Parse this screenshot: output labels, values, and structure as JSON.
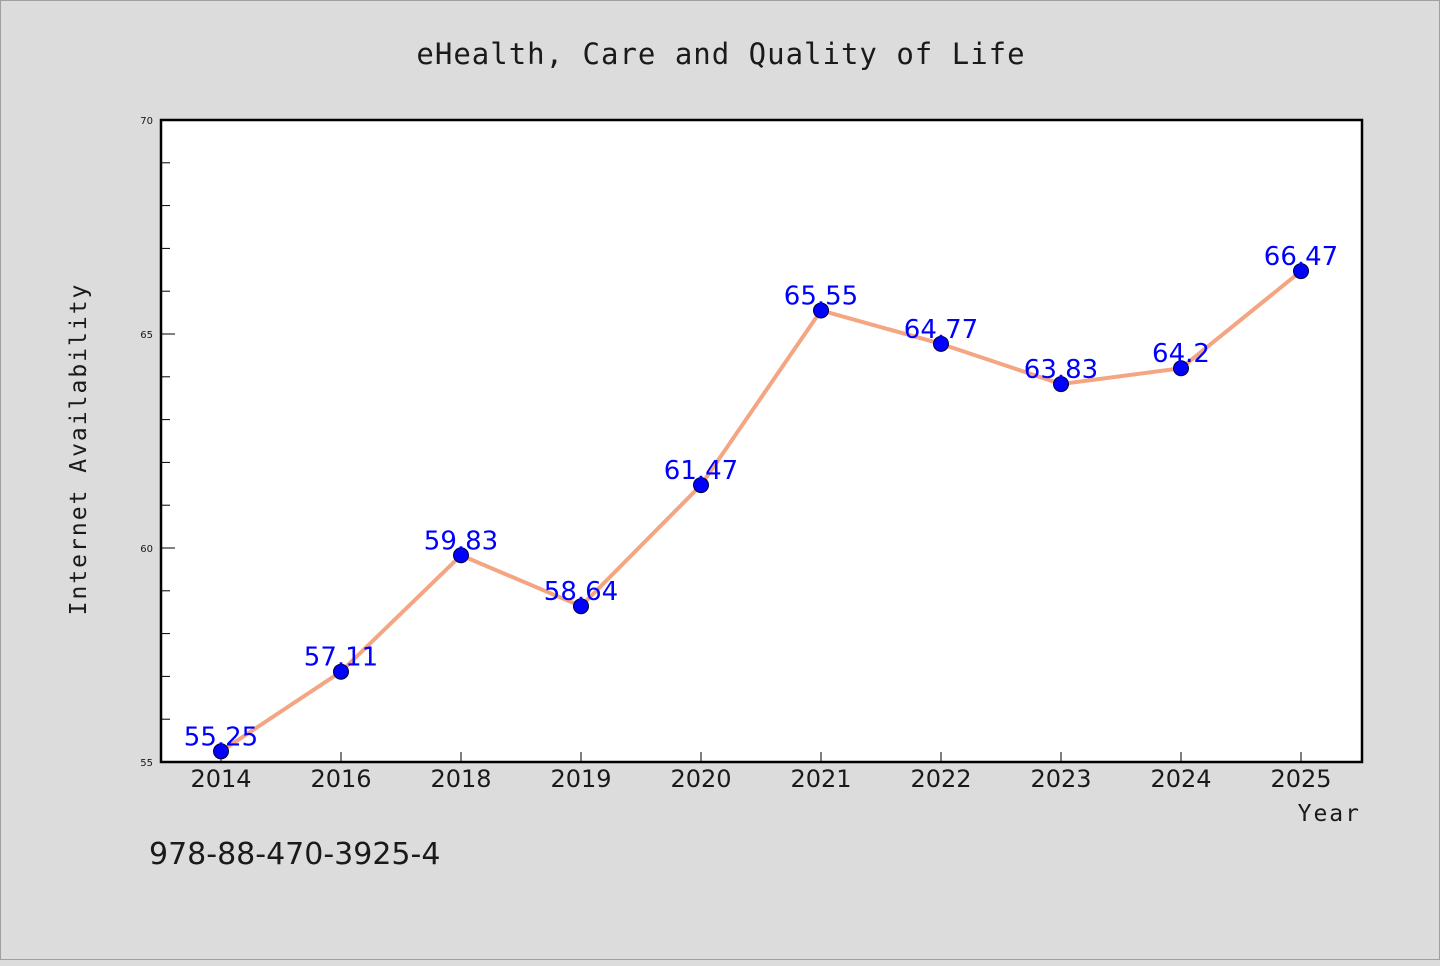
{
  "chart_data": {
    "type": "line",
    "title": "eHealth, Care and Quality of Life",
    "xlabel": "Year",
    "ylabel": "Internet Availability",
    "categories": [
      "2014",
      "2016",
      "2018",
      "2019",
      "2020",
      "2021",
      "2022",
      "2023",
      "2024",
      "2025"
    ],
    "series": [
      {
        "values": [
          55.25,
          57.11,
          59.83,
          58.64,
          61.47,
          65.55,
          64.77,
          63.83,
          64.2,
          66.47
        ],
        "labels": [
          "55.25",
          "57.11",
          "59.83",
          "58.64",
          "61.47",
          "65.55",
          "64.77",
          "63.83",
          "64.2",
          "66.47"
        ]
      }
    ],
    "ylim": [
      55,
      70
    ],
    "yticks": [
      "55",
      "60",
      "65",
      "70"
    ],
    "yminor_step": 1,
    "grid": false,
    "line_color": "#f4a582",
    "marker_color": "#0000ff",
    "label_color": "#0000ff",
    "plot_background": "#ffffff",
    "figure_background": "#dcdcdc",
    "annotation": "978-88-470-3925-4"
  }
}
